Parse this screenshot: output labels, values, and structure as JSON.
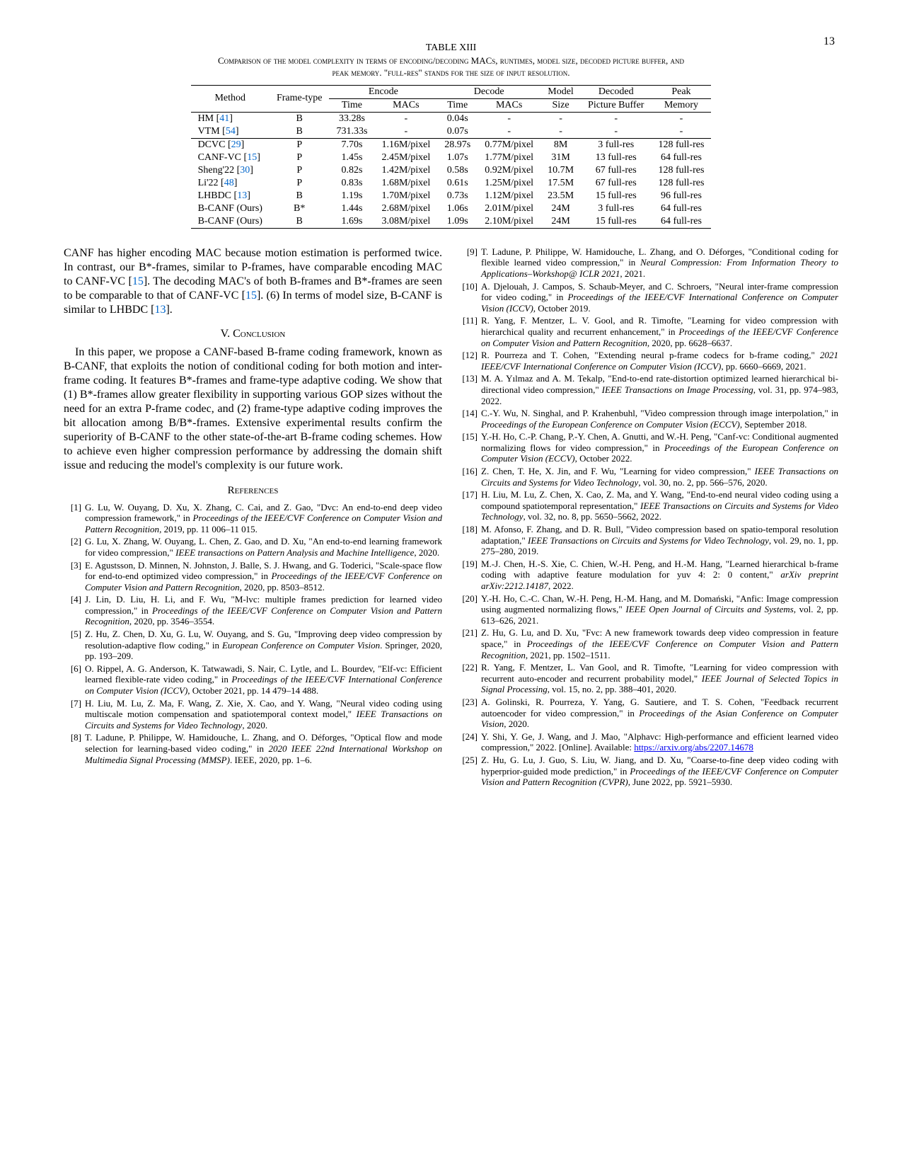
{
  "page_number": "13",
  "table": {
    "label": "TABLE XIII",
    "caption_line1": "Comparison of the model complexity in terms of encoding/decoding MACs, runtimes, model size, decoded picture buffer, and",
    "caption_line2": "peak memory. \"full-res\" stands for the size of input resolution.",
    "headers": {
      "method": "Method",
      "frame": "Frame-type",
      "encode": "Encode",
      "decode": "Decode",
      "model": "Model",
      "decoded": "Decoded",
      "peak": "Peak",
      "time": "Time",
      "macs": "MACs",
      "size": "Size",
      "picbuf": "Picture Buffer",
      "memory": "Memory"
    },
    "rows": [
      {
        "m": "HM [41]",
        "f": "B",
        "et": "33.28s",
        "em": "-",
        "dt": "0.04s",
        "dm": "-",
        "ms": "-",
        "pb": "-",
        "pk": "-",
        "c": "41"
      },
      {
        "m": "VTM [54]",
        "f": "B",
        "et": "731.33s",
        "em": "-",
        "dt": "0.07s",
        "dm": "-",
        "ms": "-",
        "pb": "-",
        "pk": "-",
        "c": "54"
      },
      {
        "m": "DCVC [29]",
        "f": "P",
        "et": "7.70s",
        "em": "1.16M/pixel",
        "dt": "28.97s",
        "dm": "0.77M/pixel",
        "ms": "8M",
        "pb": "3 full-res",
        "pk": "128 full-res",
        "c": "29"
      },
      {
        "m": "CANF-VC [15]",
        "f": "P",
        "et": "1.45s",
        "em": "2.45M/pixel",
        "dt": "1.07s",
        "dm": "1.77M/pixel",
        "ms": "31M",
        "pb": "13 full-res",
        "pk": "64 full-res",
        "c": "15"
      },
      {
        "m": "Sheng'22 [30]",
        "f": "P",
        "et": "0.82s",
        "em": "1.42M/pixel",
        "dt": "0.58s",
        "dm": "0.92M/pixel",
        "ms": "10.7M",
        "pb": "67 full-res",
        "pk": "128 full-res",
        "c": "30"
      },
      {
        "m": "Li'22 [48]",
        "f": "P",
        "et": "0.83s",
        "em": "1.68M/pixel",
        "dt": "0.61s",
        "dm": "1.25M/pixel",
        "ms": "17.5M",
        "pb": "67 full-res",
        "pk": "128 full-res",
        "c": "48"
      },
      {
        "m": "LHBDC [13]",
        "f": "B",
        "et": "1.19s",
        "em": "1.70M/pixel",
        "dt": "0.73s",
        "dm": "1.12M/pixel",
        "ms": "23.5M",
        "pb": "15 full-res",
        "pk": "96 full-res",
        "c": "13"
      },
      {
        "m": "B-CANF (Ours)",
        "f": "B*",
        "et": "1.44s",
        "em": "2.68M/pixel",
        "dt": "1.06s",
        "dm": "2.01M/pixel",
        "ms": "24M",
        "pb": "3 full-res",
        "pk": "64 full-res",
        "c": ""
      },
      {
        "m": "B-CANF (Ours)",
        "f": "B",
        "et": "1.69s",
        "em": "3.08M/pixel",
        "dt": "1.09s",
        "dm": "2.10M/pixel",
        "ms": "24M",
        "pb": "15 full-res",
        "pk": "64 full-res",
        "c": ""
      }
    ]
  },
  "body": {
    "para1": "CANF has higher encoding MAC because motion estimation is performed twice. In contrast, our B*-frames, similar to P-frames, have comparable encoding MAC to CANF-VC [15]. The decoding MAC's of both B-frames and B*-frames are seen to be comparable to that of CANF-VC [15]. (6) In terms of model size, B-CANF is similar to LHBDC [13].",
    "sec_conclusion": "V.  Conclusion",
    "para2": "In this paper, we propose a CANF-based B-frame coding framework, known as B-CANF, that exploits the notion of conditional coding for both motion and inter-frame coding. It features B*-frames and frame-type adaptive coding. We show that (1) B*-frames allow greater flexibility in supporting various GOP sizes without the need for an extra P-frame codec, and (2) frame-type adaptive coding improves the bit allocation among B/B*-frames. Extensive experimental results confirm the superiority of B-CANF to the other state-of-the-art B-frame coding schemes. How to achieve even higher compression performance by addressing the domain shift issue and reducing the model's complexity is our future work.",
    "sec_refs": "References"
  },
  "refs_left": [
    {
      "n": "[1]",
      "t": "G. Lu, W. Ouyang, D. Xu, X. Zhang, C. Cai, and Z. Gao, \"Dvc: An end-to-end deep video compression framework,\" in <em>Proceedings of the IEEE/CVF Conference on Computer Vision and Pattern Recognition</em>, 2019, pp. 11 006–11 015."
    },
    {
      "n": "[2]",
      "t": "G. Lu, X. Zhang, W. Ouyang, L. Chen, Z. Gao, and D. Xu, \"An end-to-end learning framework for video compression,\" <em>IEEE transactions on Pattern Analysis and Machine Intelligence</em>, 2020."
    },
    {
      "n": "[3]",
      "t": "E. Agustsson, D. Minnen, N. Johnston, J. Balle, S. J. Hwang, and G. Toderici, \"Scale-space flow for end-to-end optimized video compression,\" in <em>Proceedings of the IEEE/CVF Conference on Computer Vision and Pattern Recognition</em>, 2020, pp. 8503–8512."
    },
    {
      "n": "[4]",
      "t": "J. Lin, D. Liu, H. Li, and F. Wu, \"M-lvc: multiple frames prediction for learned video compression,\" in <em>Proceedings of the IEEE/CVF Conference on Computer Vision and Pattern Recognition</em>, 2020, pp. 3546–3554."
    },
    {
      "n": "[5]",
      "t": "Z. Hu, Z. Chen, D. Xu, G. Lu, W. Ouyang, and S. Gu, \"Improving deep video compression by resolution-adaptive flow coding,\" in <em>European Conference on Computer Vision</em>.   Springer, 2020, pp. 193–209."
    },
    {
      "n": "[6]",
      "t": "O. Rippel, A. G. Anderson, K. Tatwawadi, S. Nair, C. Lytle, and L. Bourdev, \"Elf-vc: Efficient learned flexible-rate video coding,\" in <em>Proceedings of the IEEE/CVF International Conference on Computer Vision (ICCV)</em>, October 2021, pp. 14 479–14 488."
    },
    {
      "n": "[7]",
      "t": "H. Liu, M. Lu, Z. Ma, F. Wang, Z. Xie, X. Cao, and Y. Wang, \"Neural video coding using multiscale motion compensation and spatiotemporal context model,\" <em>IEEE Transactions on Circuits and Systems for Video Technology</em>, 2020."
    },
    {
      "n": "[8]",
      "t": "T. Ladune, P. Philippe, W. Hamidouche, L. Zhang, and O. Déforges, \"Optical flow and mode selection for learning-based video coding,\" in <em>2020 IEEE 22nd International Workshop on Multimedia Signal Processing (MMSP)</em>.   IEEE, 2020, pp. 1–6."
    }
  ],
  "refs_right": [
    {
      "n": "[9]",
      "t": "T. Ladune, P. Philippe, W. Hamidouche, L. Zhang, and O. Déforges, \"Conditional coding for flexible learned video compression,\" in <em>Neural Compression: From Information Theory to Applications–Workshop@ ICLR 2021</em>, 2021."
    },
    {
      "n": "[10]",
      "t": "A. Djelouah, J. Campos, S. Schaub-Meyer, and C. Schroers, \"Neural inter-frame compression for video coding,\" in <em>Proceedings of the IEEE/CVF International Conference on Computer Vision (ICCV)</em>, October 2019."
    },
    {
      "n": "[11]",
      "t": "R. Yang, F. Mentzer, L. V. Gool, and R. Timofte, \"Learning for video compression with hierarchical quality and recurrent enhancement,\" in <em>Proceedings of the IEEE/CVF Conference on Computer Vision and Pattern Recognition</em>, 2020, pp. 6628–6637."
    },
    {
      "n": "[12]",
      "t": "R. Pourreza and T. Cohen, \"Extending neural p-frame codecs for b-frame coding,\" <em>2021 IEEE/CVF International Conference on Computer Vision (ICCV)</em>, pp. 6660–6669, 2021."
    },
    {
      "n": "[13]",
      "t": "M. A. Yılmaz and A. M. Tekalp, \"End-to-end rate-distortion optimized learned hierarchical bi-directional video compression,\" <em>IEEE Transactions on Image Processing</em>, vol. 31, pp. 974–983, 2022."
    },
    {
      "n": "[14]",
      "t": "C.-Y. Wu, N. Singhal, and P. Krahenbuhl, \"Video compression through image interpolation,\" in <em>Proceedings of the European Conference on Computer Vision (ECCV)</em>, September 2018."
    },
    {
      "n": "[15]",
      "t": "Y.-H. Ho, C.-P. Chang, P.-Y. Chen, A. Gnutti, and W.-H. Peng, \"Canf-vc: Conditional augmented normalizing flows for video compression,\" in <em>Proceedings of the European Conference on Computer Vision (ECCV)</em>, October 2022."
    },
    {
      "n": "[16]",
      "t": "Z. Chen, T. He, X. Jin, and F. Wu, \"Learning for video compression,\" <em>IEEE Transactions on Circuits and Systems for Video Technology</em>, vol. 30, no. 2, pp. 566–576, 2020."
    },
    {
      "n": "[17]",
      "t": "H. Liu, M. Lu, Z. Chen, X. Cao, Z. Ma, and Y. Wang, \"End-to-end neural video coding using a compound spatiotemporal representation,\" <em>IEEE Transactions on Circuits and Systems for Video Technology</em>, vol. 32, no. 8, pp. 5650–5662, 2022."
    },
    {
      "n": "[18]",
      "t": "M. Afonso, F. Zhang, and D. R. Bull, \"Video compression based on spatio-temporal resolution adaptation,\" <em>IEEE Transactions on Circuits and Systems for Video Technology</em>, vol. 29, no. 1, pp. 275–280, 2019."
    },
    {
      "n": "[19]",
      "t": "M.-J. Chen, H.-S. Xie, C. Chien, W.-H. Peng, and H.-M. Hang, \"Learned hierarchical b-frame coding with adaptive feature modulation for yuv 4: 2: 0 content,\" <em>arXiv preprint arXiv:2212.14187</em>, 2022."
    },
    {
      "n": "[20]",
      "t": "Y.-H. Ho, C.-C. Chan, W.-H. Peng, H.-M. Hang, and M. Domański, \"Anfic: Image compression using augmented normalizing flows,\" <em>IEEE Open Journal of Circuits and Systems</em>, vol. 2, pp. 613–626, 2021."
    },
    {
      "n": "[21]",
      "t": "Z. Hu, G. Lu, and D. Xu, \"Fvc: A new framework towards deep video compression in feature space,\" in <em>Proceedings of the IEEE/CVF Conference on Computer Vision and Pattern Recognition</em>, 2021, pp. 1502–1511."
    },
    {
      "n": "[22]",
      "t": "R. Yang, F. Mentzer, L. Van Gool, and R. Timofte, \"Learning for video compression with recurrent auto-encoder and recurrent probability model,\" <em>IEEE Journal of Selected Topics in Signal Processing</em>, vol. 15, no. 2, pp. 388–401, 2020."
    },
    {
      "n": "[23]",
      "t": "A. Golinski, R. Pourreza, Y. Yang, G. Sautiere, and T. S. Cohen, \"Feedback recurrent autoencoder for video compression,\" in <em>Proceedings of the Asian Conference on Computer Vision</em>, 2020."
    },
    {
      "n": "[24]",
      "t": "Y. Shi, Y. Ge, J. Wang, and J. Mao, \"Alphavc: High-performance and efficient learned video compression,\" 2022. [Online]. Available: <span class=\"url\">https://arxiv.org/abs/2207.14678</span>"
    },
    {
      "n": "[25]",
      "t": "Z. Hu, G. Lu, J. Guo, S. Liu, W. Jiang, and D. Xu, \"Coarse-to-fine deep video coding with hyperprior-guided mode prediction,\" in <em>Proceedings of the IEEE/CVF Conference on Computer Vision and Pattern Recognition (CVPR)</em>, June 2022, pp. 5921–5930."
    }
  ]
}
